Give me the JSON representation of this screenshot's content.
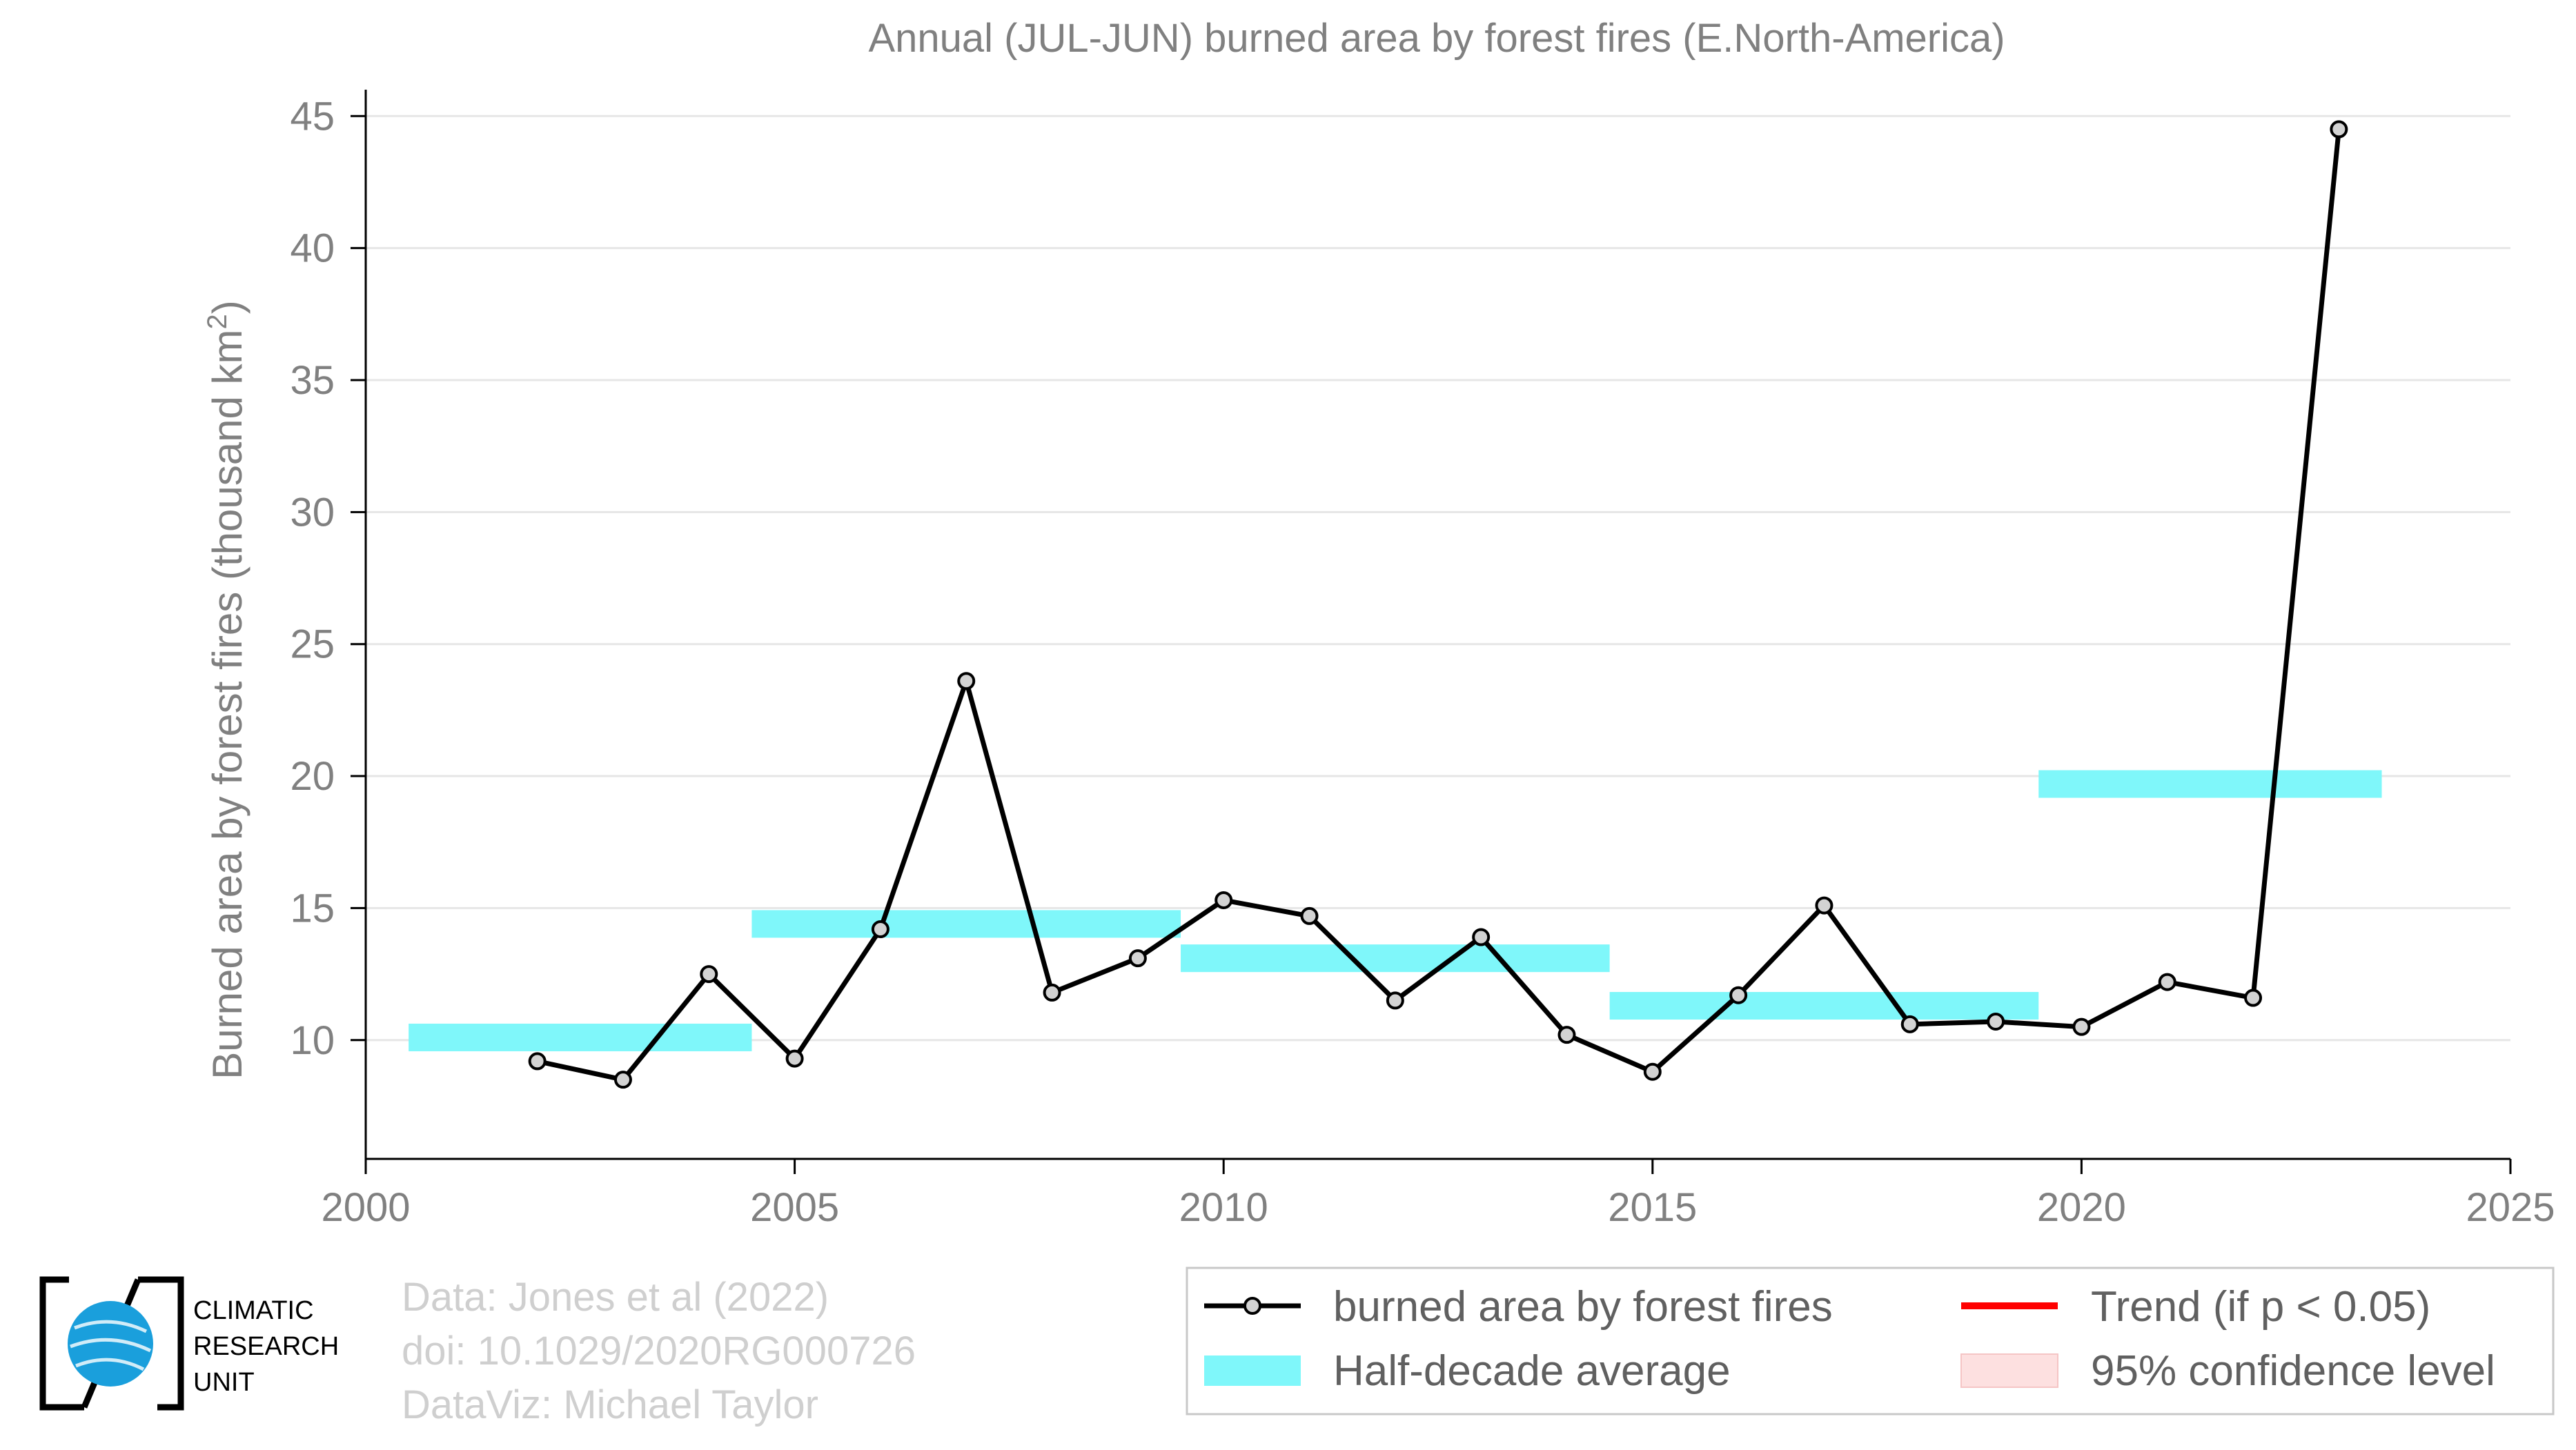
{
  "chart_data": {
    "type": "line",
    "title": "Annual (JUL-JUN) burned area by forest fires (E.North-America)",
    "xlabel": "",
    "ylabel": "Burned area by forest fires (thousand km",
    "ylabel_sup": "2",
    "ylabel_close": ")",
    "xlim": [
      2000,
      2025
    ],
    "ylim": [
      5.5,
      46
    ],
    "xticks": [
      2000,
      2005,
      2010,
      2015,
      2020,
      2025
    ],
    "yticks": [
      10,
      15,
      20,
      25,
      30,
      35,
      40,
      45
    ],
    "grid": true,
    "series": [
      {
        "name": "burned area by forest fires",
        "color": "#000000",
        "marker_fill": "#d3d3d3",
        "x": [
          2002,
          2003,
          2004,
          2005,
          2006,
          2007,
          2008,
          2009,
          2010,
          2011,
          2012,
          2013,
          2014,
          2015,
          2016,
          2017,
          2018,
          2019,
          2020,
          2021,
          2022,
          2023
        ],
        "y": [
          9.2,
          8.5,
          12.5,
          9.3,
          14.2,
          23.6,
          11.8,
          13.1,
          15.3,
          14.7,
          11.5,
          13.9,
          10.2,
          8.8,
          11.7,
          15.1,
          10.6,
          10.7,
          10.5,
          12.2,
          11.6,
          44.5
        ]
      }
    ],
    "half_decade_average": {
      "name": "Half-decade average",
      "color": "#7ff7fa",
      "segments": [
        {
          "x_start": 2000.5,
          "x_end": 2004.5,
          "y": 10.1
        },
        {
          "x_start": 2004.5,
          "x_end": 2009.5,
          "y": 14.4
        },
        {
          "x_start": 2009.5,
          "x_end": 2014.5,
          "y": 13.1
        },
        {
          "x_start": 2014.5,
          "x_end": 2019.5,
          "y": 11.3
        },
        {
          "x_start": 2019.5,
          "x_end": 2023.5,
          "y": 19.7
        }
      ]
    },
    "legend": {
      "placement": "bottom-right",
      "entries": [
        {
          "label": "burned area by forest fires",
          "kind": "line-marker",
          "color": "#000000"
        },
        {
          "label": "Trend (if p < 0.05)",
          "kind": "line",
          "color": "#ff0000"
        },
        {
          "label": "Half-decade average",
          "kind": "band",
          "color": "#7ff7fa"
        },
        {
          "label": "95% confidence level",
          "kind": "band",
          "color": "#fde0e0"
        }
      ]
    }
  },
  "credits": {
    "line1": "Data: Jones et al (2022)",
    "line2": "doi: 10.1029/2020RG000726",
    "line3": "DataViz: Michael Taylor"
  },
  "logo": {
    "line1": "CLIMATIC",
    "line2": "RESEARCH",
    "line3": "UNIT",
    "globe_color": "#1a9fdc"
  }
}
